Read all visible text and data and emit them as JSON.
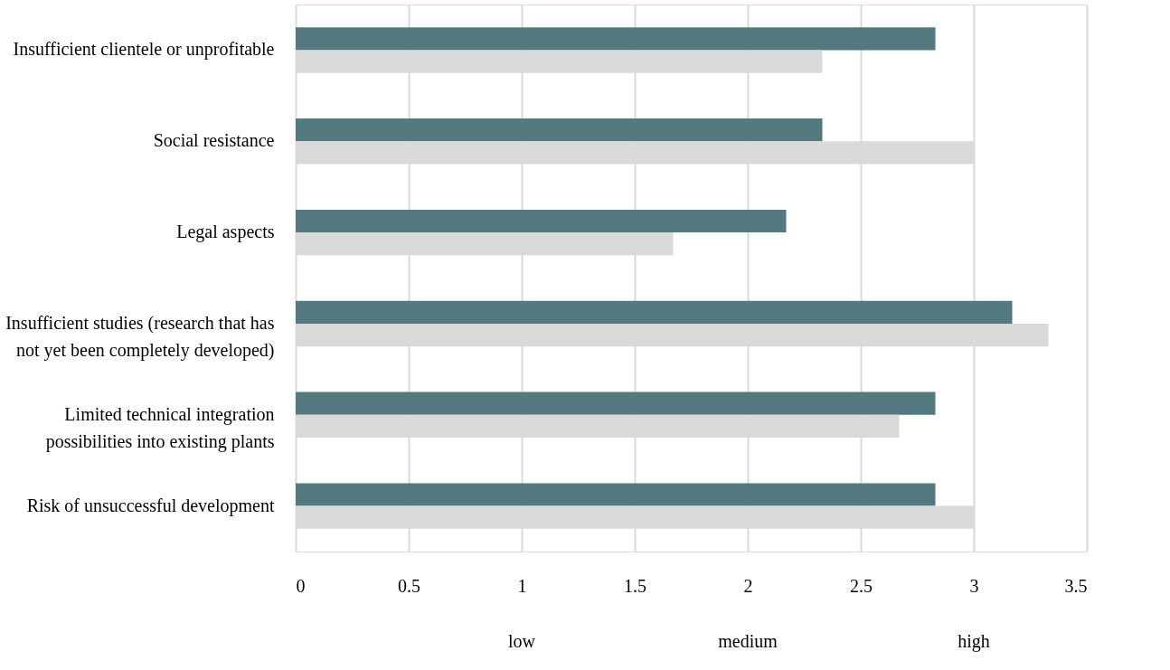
{
  "chart_data": {
    "type": "bar",
    "orientation": "horizontal",
    "categories": [
      "Insufficient clientele or unprofitable",
      "Social resistance",
      "Legal aspects",
      "Insufficient studies (research that has\nnot yet been completely developed)",
      "Limited technical integration\npossibilities into existing plants",
      "Risk of unsuccessful development"
    ],
    "series": [
      {
        "color": "#537a7f",
        "values": [
          2.83,
          2.33,
          2.17,
          3.17,
          2.83,
          2.83
        ]
      },
      {
        "color": "#d9d9d9",
        "values": [
          2.33,
          3.0,
          1.67,
          3.33,
          2.67,
          3.0
        ]
      }
    ],
    "xlim": [
      0,
      3.5
    ],
    "xticks": [
      0,
      0.5,
      1,
      1.5,
      2,
      2.5,
      3,
      3.5
    ],
    "grid": "x",
    "legend": false,
    "annotations": [
      "low",
      "medium",
      "high"
    ]
  }
}
